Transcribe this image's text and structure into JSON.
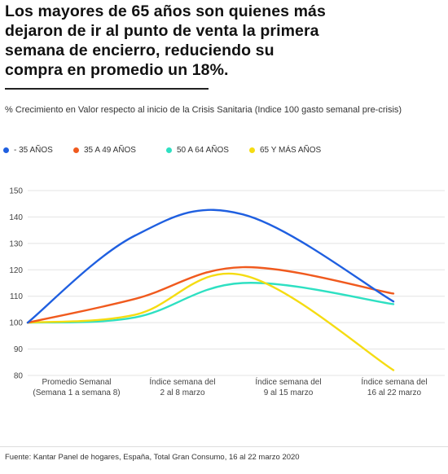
{
  "headline": {
    "lines": [
      "Los mayores de 65 años son quienes más",
      "dejaron de ir al punto de venta la primera",
      "semana de encierro, reduciendo su",
      "compra en promedio un 18%."
    ]
  },
  "subtitle": "% Crecimiento en Valor respecto al inicio de la Crisis Sanitaria  (Indice 100 gasto semanal pre-crisis)",
  "source": "Fuente: Kantar Panel de hogares, España, Total Gran Consumo, 16 al 22 marzo 2020",
  "colors": {
    "blue": "#1f5fe0",
    "orange": "#f05a1e",
    "teal": "#2ee0c2",
    "yellow": "#f5dc12",
    "grid": "#e3e3e3"
  },
  "chart_data": {
    "type": "line",
    "smooth": true,
    "x": [
      [
        "Promedio Semanal",
        "(Semana 1 a semana 8)"
      ],
      [
        "Índice semana del",
        "2 al 8 marzo"
      ],
      [
        "Índice semana del",
        "9 al 15 marzo"
      ],
      [
        "Índice semana del",
        "16 al 22 marzo"
      ]
    ],
    "ylim": [
      80,
      150
    ],
    "yticks": [
      80,
      90,
      100,
      110,
      120,
      130,
      140,
      150
    ],
    "grid": true,
    "legend_position": "top",
    "series": [
      {
        "name": "- 35 AÑOS",
        "color": "#1f5fe0",
        "values": [
          100,
          133,
          141,
          108
        ]
      },
      {
        "name": "35 A 49 AÑOS",
        "color": "#f05a1e",
        "values": [
          100,
          109,
          121,
          111
        ]
      },
      {
        "name": "50 A 64 AÑOS",
        "color": "#2ee0c2",
        "values": [
          100,
          102,
          115,
          107
        ]
      },
      {
        "name": "65 Y MÁS AÑOS",
        "color": "#f5dc12",
        "values": [
          100,
          103,
          118,
          82
        ]
      }
    ]
  }
}
